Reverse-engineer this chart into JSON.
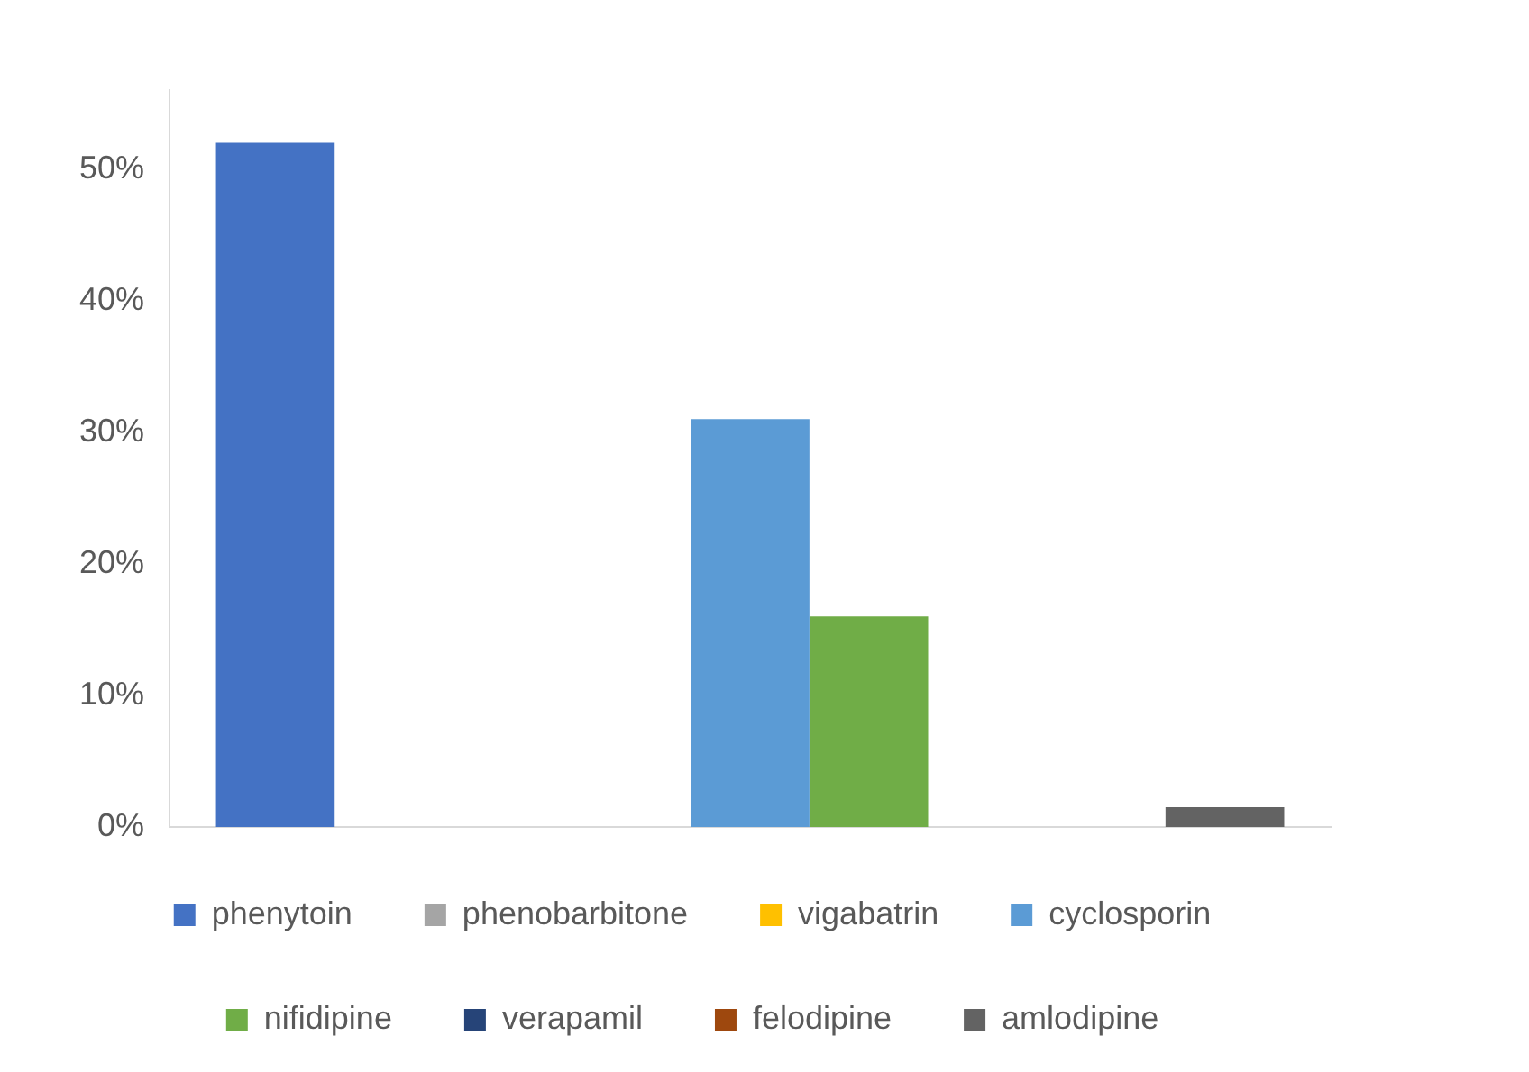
{
  "chart_data": {
    "type": "bar",
    "categories": [
      null
    ],
    "series": [
      {
        "name": "phenytoin",
        "color": "#4472c4",
        "values": [
          52
        ]
      },
      {
        "color": "#c55a11",
        "values": [
          0
        ]
      },
      {
        "name": "phenobarbitone",
        "color": "#a5a5a5",
        "values": [
          0
        ]
      },
      {
        "name": "vigabatrin",
        "color": "#ffc000",
        "values": [
          0
        ]
      },
      {
        "name": "cyclosporin",
        "color": "#5b9bd5",
        "values": [
          31
        ]
      },
      {
        "name": "nifidipine",
        "color": "#70ad47",
        "values": [
          16
        ]
      },
      {
        "name": "verapamil",
        "color": "#264478",
        "values": [
          0
        ]
      },
      {
        "name": "felodipine",
        "color": "#9e480e",
        "values": [
          0
        ]
      },
      {
        "name": "amlodipine",
        "color": "#636363",
        "values": [
          1.5
        ]
      }
    ],
    "ylim": [
      0,
      56
    ],
    "yticks": [
      {
        "value": 0,
        "label": "0%"
      },
      {
        "value": 10,
        "label": "10%"
      },
      {
        "value": 20,
        "label": "20%"
      },
      {
        "value": 30,
        "label": "30%"
      },
      {
        "value": 40,
        "label": "40%"
      },
      {
        "value": 50,
        "label": "50%"
      }
    ],
    "grid": false,
    "legend": "bottom",
    "tick_labels": "y"
  }
}
